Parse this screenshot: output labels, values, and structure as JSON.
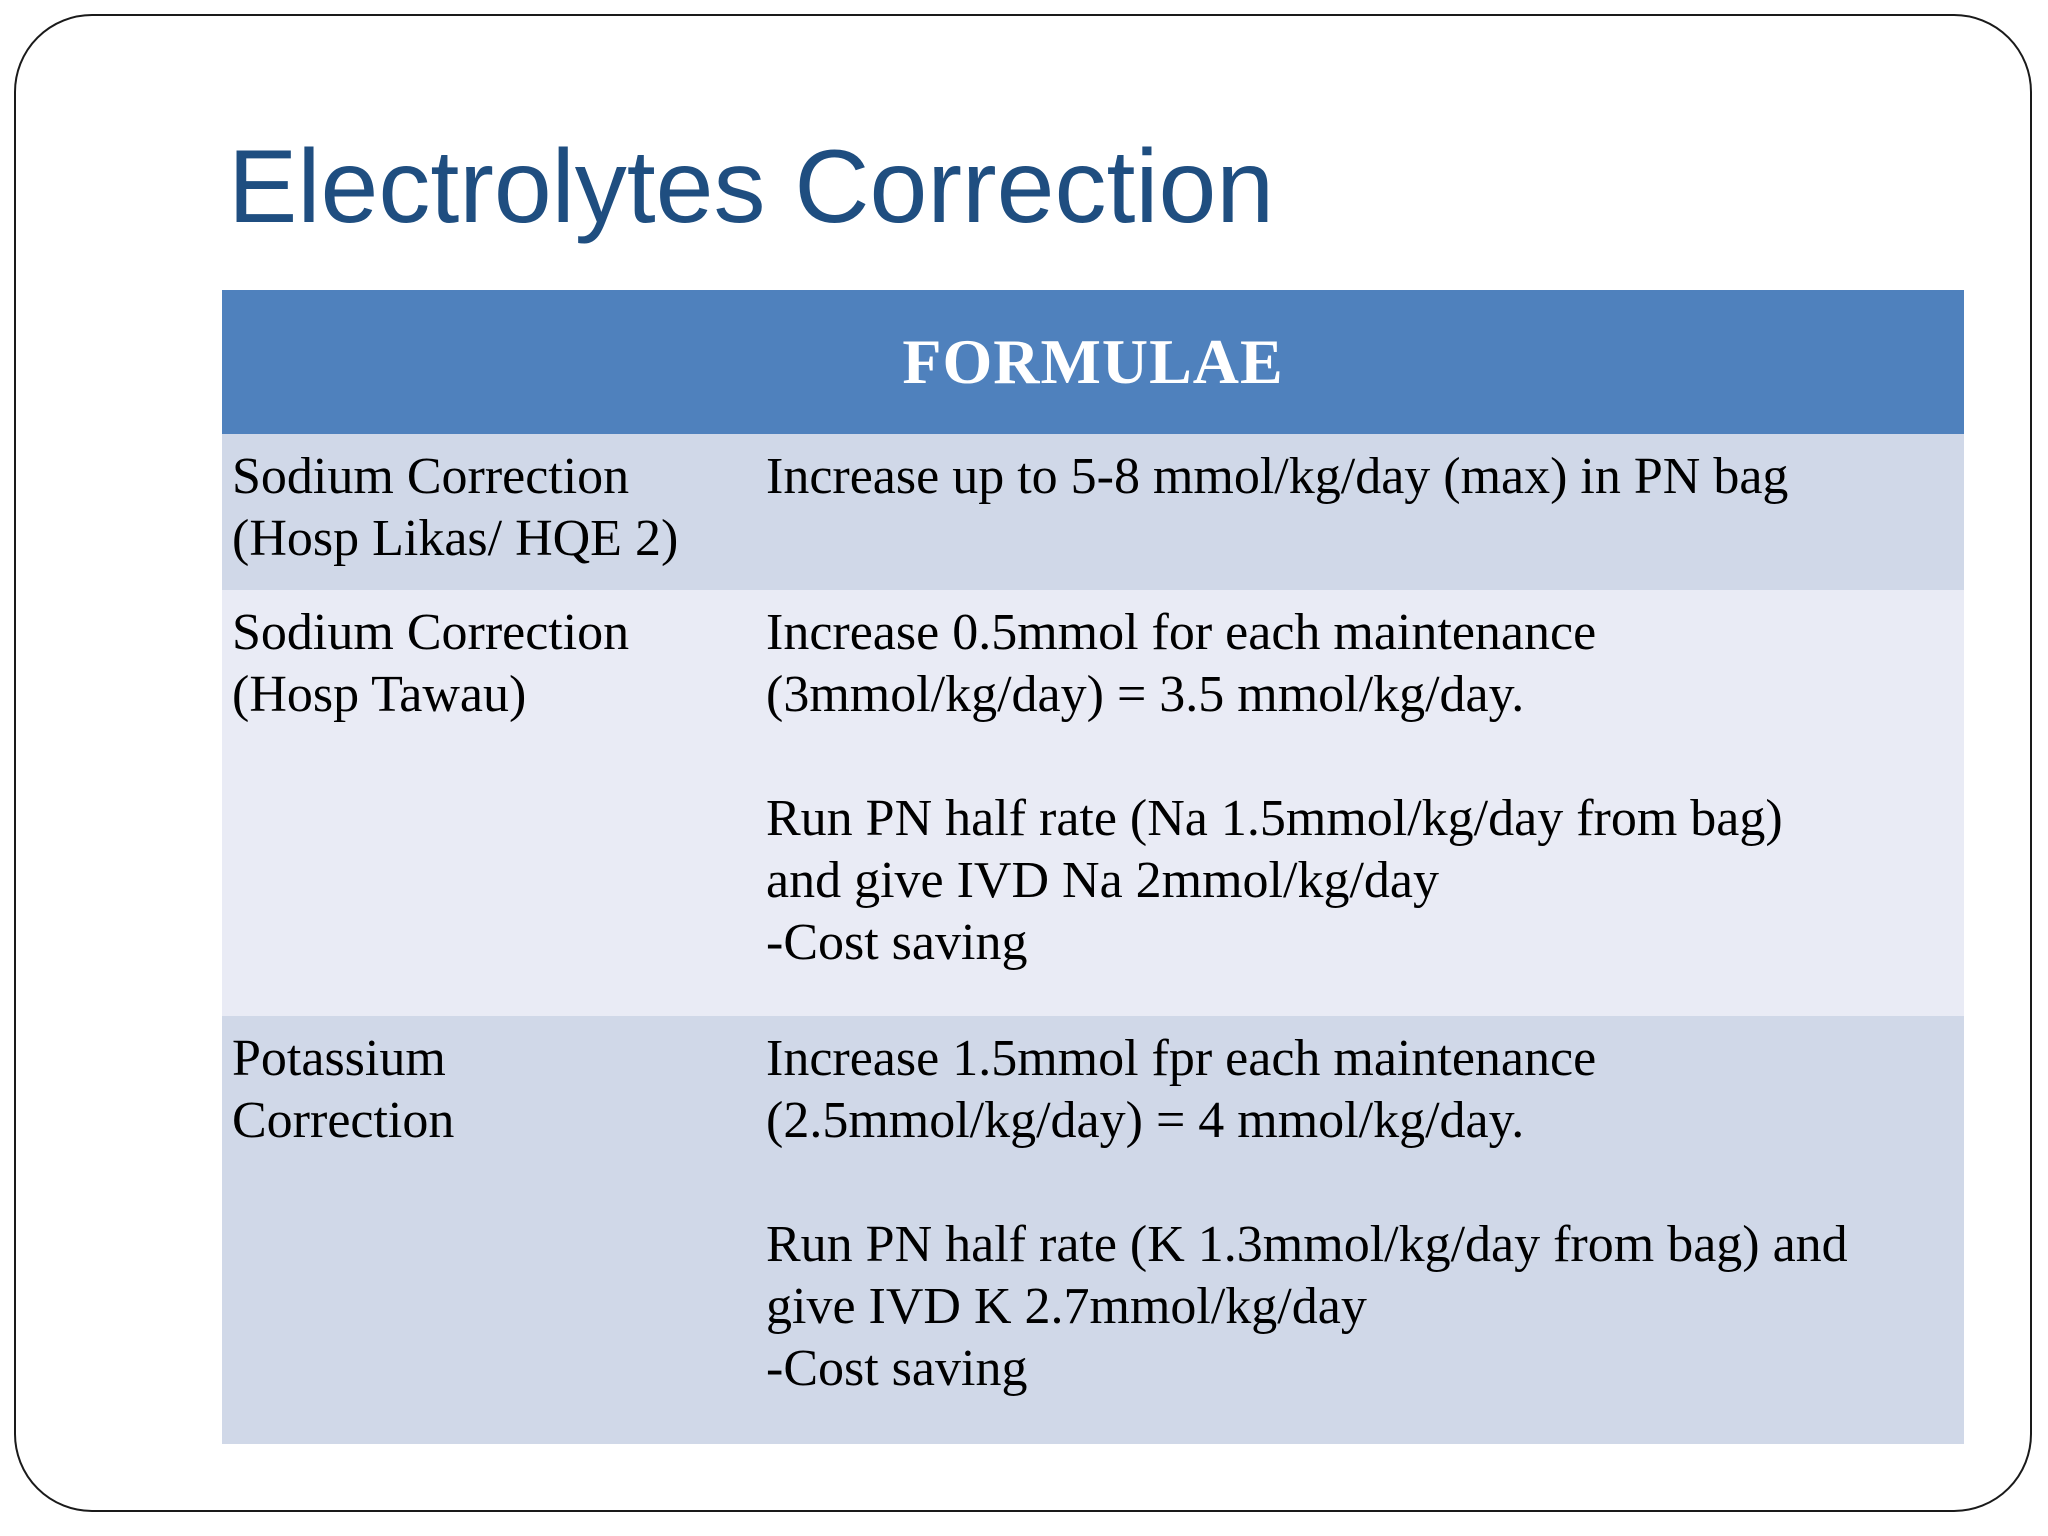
{
  "slide": {
    "title": "Electrolytes Correction"
  },
  "table": {
    "header": "FORMULAE",
    "rows": [
      {
        "label": [
          "Sodium Correction",
          "(Hosp Likas/ HQE 2)"
        ],
        "paragraphs": [
          [
            "Increase up to 5-8 mmol/kg/day (max) in PN bag"
          ]
        ]
      },
      {
        "label": [
          "Sodium Correction",
          "(Hosp Tawau)"
        ],
        "paragraphs": [
          [
            "Increase 0.5mmol for each maintenance",
            "(3mmol/kg/day) = 3.5 mmol/kg/day."
          ],
          [
            "Run PN half rate (Na 1.5mmol/kg/day from bag)",
            "and give IVD Na 2mmol/kg/day",
            "-Cost saving"
          ]
        ]
      },
      {
        "label": [
          "Potassium",
          "Correction"
        ],
        "paragraphs": [
          [
            "Increase 1.5mmol fpr each maintenance",
            "(2.5mmol/kg/day) = 4 mmol/kg/day."
          ],
          [
            "Run PN half rate (K 1.3mmol/kg/day from bag) and",
            "give IVD K 2.7mmol/kg/day",
            "-Cost saving"
          ]
        ]
      }
    ]
  }
}
